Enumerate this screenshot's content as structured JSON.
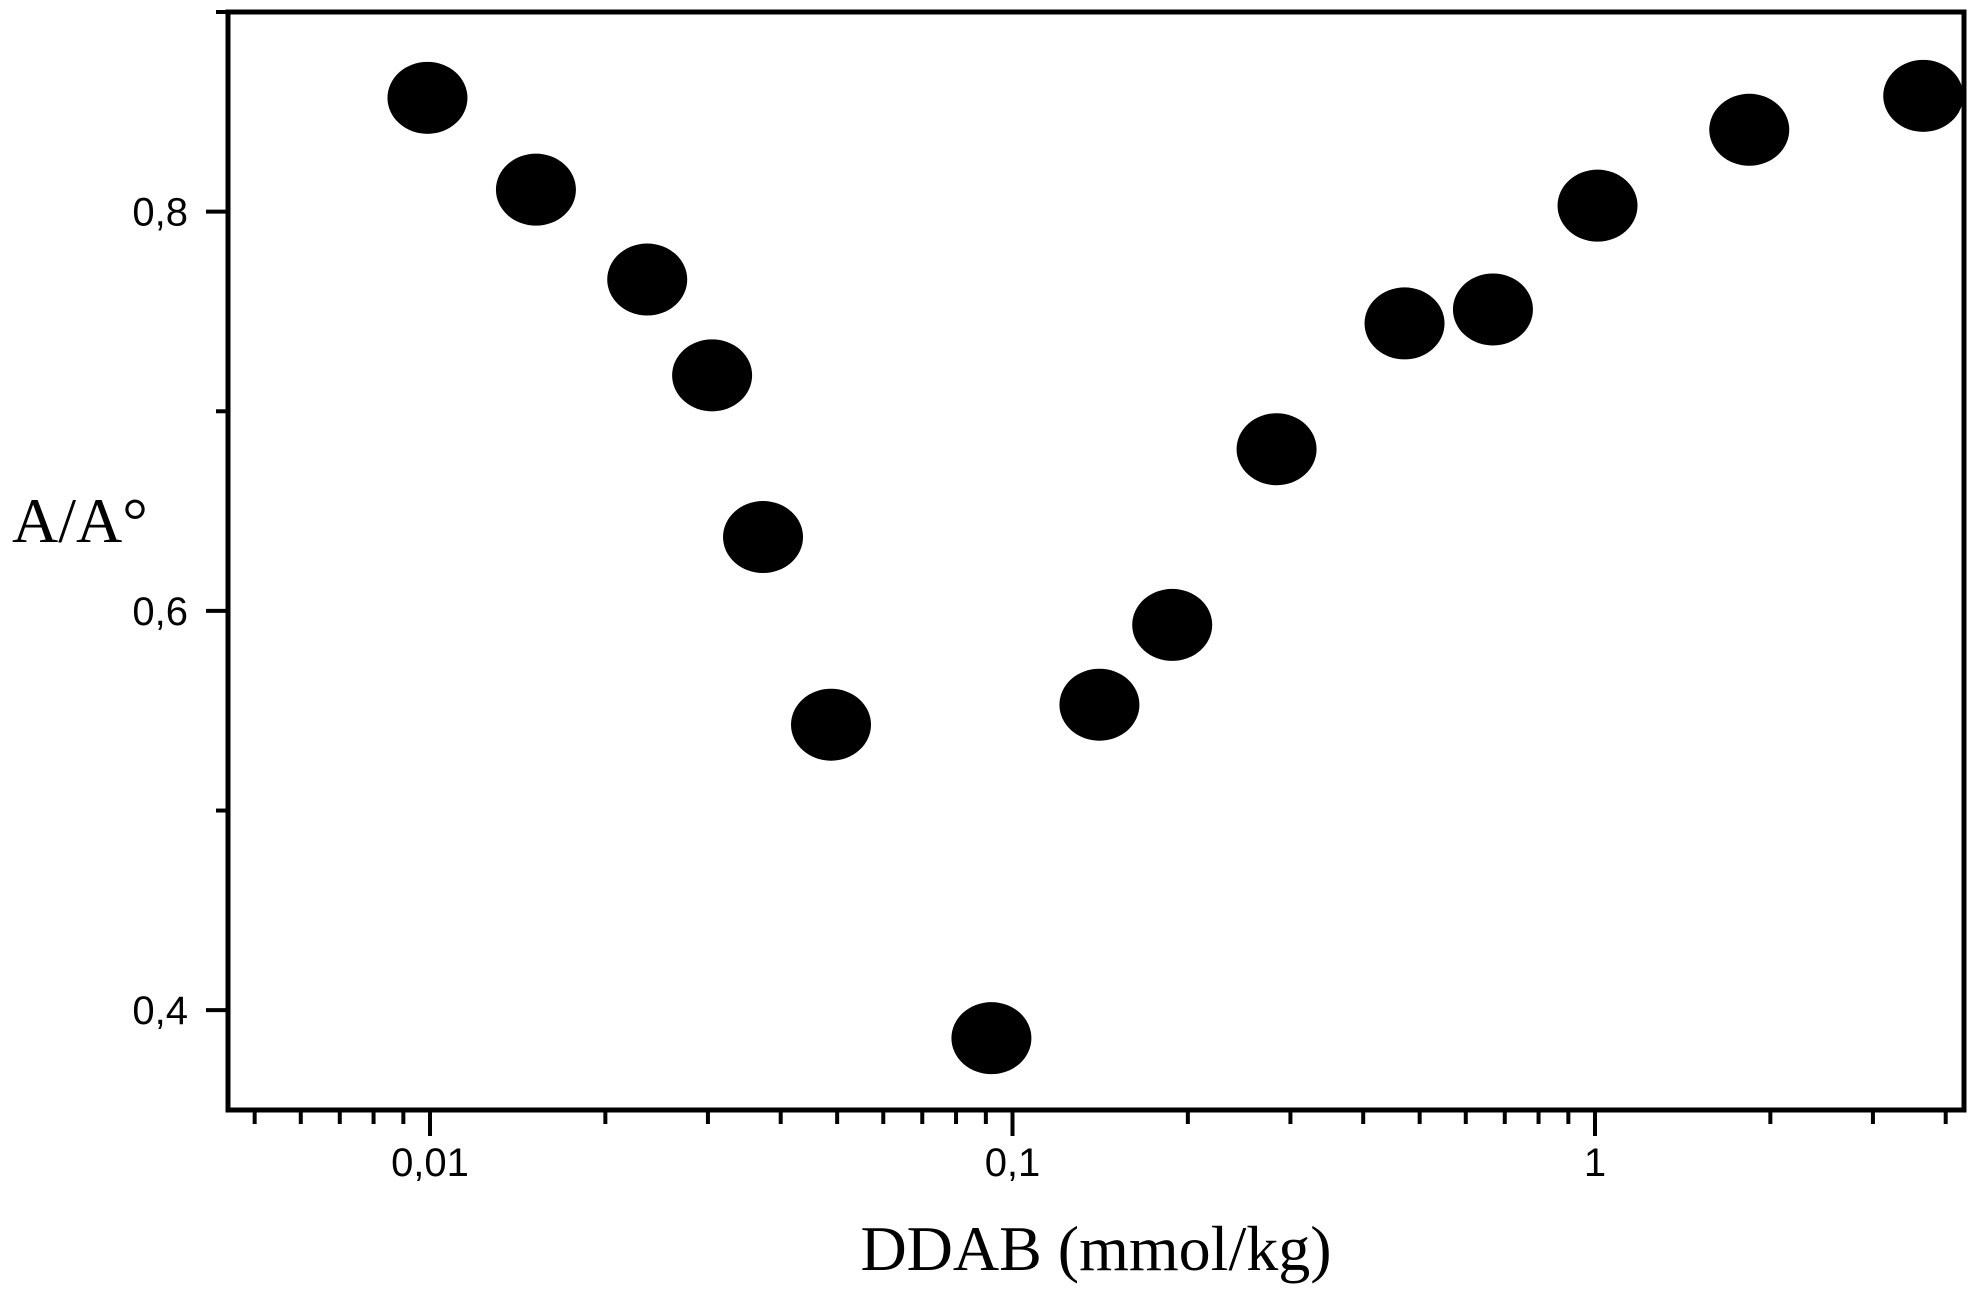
{
  "chart_data": {
    "type": "scatter",
    "xlabel": "DDAB (mmol/kg)",
    "ylabel": "A/A°",
    "xscale": "log",
    "xlim": [
      0.0045,
      4.3
    ],
    "ylim": [
      0.35,
      0.9
    ],
    "xticks": [
      {
        "value": 0.01,
        "label": "0,01"
      },
      {
        "value": 0.1,
        "label": "0,1"
      },
      {
        "value": 1,
        "label": "1"
      }
    ],
    "yticks": [
      {
        "value": 0.4,
        "label": "0,4"
      },
      {
        "value": 0.6,
        "label": "0,6"
      },
      {
        "value": 0.8,
        "label": "0,8"
      }
    ],
    "grid": false,
    "marker_color": "#000000",
    "points": [
      {
        "x": 0.0099,
        "y": 0.857
      },
      {
        "x": 0.0152,
        "y": 0.811
      },
      {
        "x": 0.0236,
        "y": 0.766
      },
      {
        "x": 0.0305,
        "y": 0.718
      },
      {
        "x": 0.0373,
        "y": 0.637
      },
      {
        "x": 0.0488,
        "y": 0.543
      },
      {
        "x": 0.092,
        "y": 0.386
      },
      {
        "x": 0.141,
        "y": 0.553
      },
      {
        "x": 0.188,
        "y": 0.593
      },
      {
        "x": 0.284,
        "y": 0.681
      },
      {
        "x": 0.471,
        "y": 0.744
      },
      {
        "x": 0.668,
        "y": 0.751
      },
      {
        "x": 1.01,
        "y": 0.803
      },
      {
        "x": 1.84,
        "y": 0.841
      },
      {
        "x": 3.66,
        "y": 0.858
      }
    ]
  }
}
